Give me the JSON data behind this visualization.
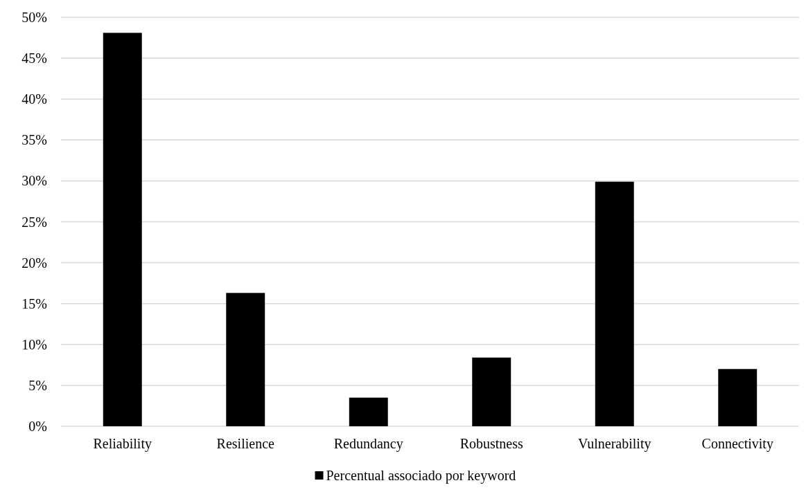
{
  "chart_data": {
    "type": "bar",
    "categories": [
      "Reliability",
      "Resilience",
      "Redundancy",
      "Robustness",
      "Vulnerability",
      "Connectivity"
    ],
    "series": [
      {
        "name": "Percentual associado por keyword",
        "color": "#000000",
        "values": [
          48.1,
          16.3,
          3.5,
          8.4,
          29.9,
          7.0
        ]
      }
    ],
    "ylim": [
      0,
      50
    ],
    "yticks": [
      {
        "value": 0,
        "label": "0%"
      },
      {
        "value": 5,
        "label": "5%"
      },
      {
        "value": 10,
        "label": "10%"
      },
      {
        "value": 15,
        "label": "15%"
      },
      {
        "value": 20,
        "label": "20%"
      },
      {
        "value": 25,
        "label": "25%"
      },
      {
        "value": 30,
        "label": "30%"
      },
      {
        "value": 35,
        "label": "35%"
      },
      {
        "value": 40,
        "label": "40%"
      },
      {
        "value": 45,
        "label": "45%"
      },
      {
        "value": 50,
        "label": "50%"
      }
    ],
    "grid": "y",
    "legend": "bottom"
  }
}
